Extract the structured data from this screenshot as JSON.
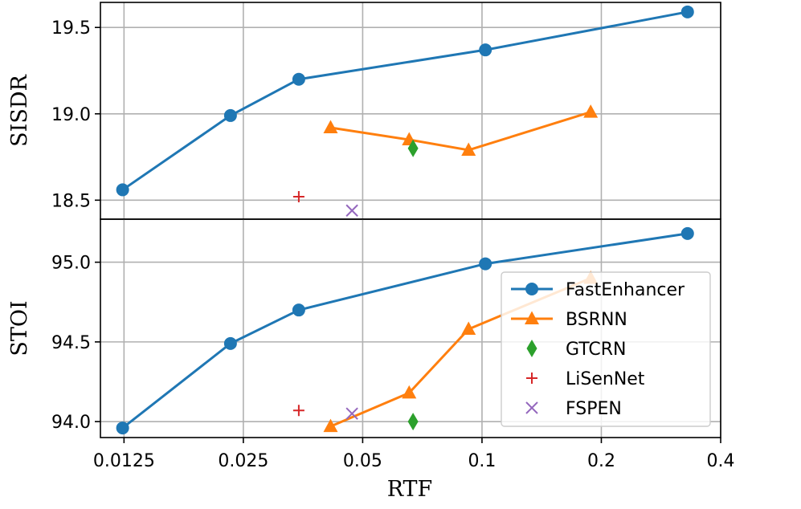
{
  "chart_data": [
    {
      "type": "line",
      "panel": "top",
      "ylabel": "SISDR",
      "xlabel": "",
      "xscale": "log2",
      "xlim": [
        0.0109,
        0.4
      ],
      "ylim": [
        18.39,
        19.645
      ],
      "xticks": [
        0.0125,
        0.025,
        0.05,
        0.1,
        0.2,
        0.4
      ],
      "xtick_labels": [
        "0.0125",
        "0.025",
        "0.05",
        "0.1",
        "0.2",
        "0.4"
      ],
      "yticks": [
        18.5,
        19.0,
        19.5
      ],
      "ytick_labels": [
        "18.5",
        "19.0",
        "19.5"
      ],
      "grid": true,
      "series": [
        {
          "name": "FastEnhancer",
          "color": "#1f77b4",
          "marker": "circle",
          "line": true,
          "x": [
            0.0124,
            0.0232,
            0.0345,
            0.102,
            0.33
          ],
          "y": [
            18.56,
            18.99,
            19.2,
            19.37,
            19.59
          ]
        },
        {
          "name": "BSRNN",
          "color": "#ff7f0e",
          "marker": "triangle",
          "line": true,
          "x": [
            0.0415,
            0.0655,
            0.0925,
            0.188
          ],
          "y": [
            18.92,
            18.85,
            18.79,
            19.01
          ]
        },
        {
          "name": "GTCRN",
          "color": "#2ca02c",
          "marker": "diamond",
          "line": false,
          "x": [
            0.067
          ],
          "y": [
            18.8
          ]
        },
        {
          "name": "LiSenNet",
          "color": "#d62728",
          "marker": "plus",
          "line": false,
          "x": [
            0.0345
          ],
          "y": [
            18.52
          ]
        },
        {
          "name": "FSPEN",
          "color": "#9467bd",
          "marker": "x",
          "line": false,
          "x": [
            0.047
          ],
          "y": [
            18.44
          ]
        }
      ]
    },
    {
      "type": "line",
      "panel": "bottom",
      "ylabel": "STOI",
      "xlabel": "RTF",
      "xscale": "log2",
      "xlim": [
        0.0109,
        0.4
      ],
      "ylim": [
        93.9,
        95.27
      ],
      "xticks": [
        0.0125,
        0.025,
        0.05,
        0.1,
        0.2,
        0.4
      ],
      "xtick_labels": [
        "0.0125",
        "0.025",
        "0.05",
        "0.1",
        "0.2",
        "0.4"
      ],
      "yticks": [
        94.0,
        94.5,
        95.0
      ],
      "ytick_labels": [
        "94.0",
        "94.5",
        "95.0"
      ],
      "grid": true,
      "legend": "lower-right",
      "series": [
        {
          "name": "FastEnhancer",
          "color": "#1f77b4",
          "marker": "circle",
          "line": true,
          "x": [
            0.0124,
            0.0232,
            0.0345,
            0.102,
            0.33
          ],
          "y": [
            93.96,
            94.49,
            94.7,
            94.99,
            95.18
          ]
        },
        {
          "name": "BSRNN",
          "color": "#ff7f0e",
          "marker": "triangle",
          "line": true,
          "x": [
            0.0415,
            0.0655,
            0.0925,
            0.188
          ],
          "y": [
            93.97,
            94.18,
            94.58,
            94.9
          ]
        },
        {
          "name": "GTCRN",
          "color": "#2ca02c",
          "marker": "diamond",
          "line": false,
          "x": [
            0.067
          ],
          "y": [
            94.0
          ]
        },
        {
          "name": "LiSenNet",
          "color": "#d62728",
          "marker": "plus",
          "line": false,
          "x": [
            0.0345
          ],
          "y": [
            94.07
          ]
        },
        {
          "name": "FSPEN",
          "color": "#9467bd",
          "marker": "x",
          "line": false,
          "x": [
            0.047
          ],
          "y": [
            94.05
          ]
        }
      ]
    }
  ]
}
